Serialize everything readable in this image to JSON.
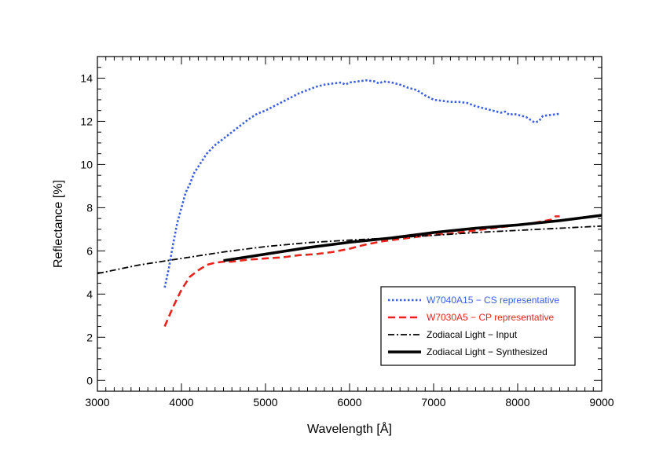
{
  "chart_data": {
    "type": "line",
    "title": "",
    "xlabel": "Wavelength [Å]",
    "ylabel": "Reflectance [%]",
    "xlim": [
      3000,
      9000
    ],
    "ylim": [
      -0.5,
      15
    ],
    "xticks": [
      3000,
      4000,
      5000,
      6000,
      7000,
      8000,
      9000
    ],
    "yticks": [
      0,
      2,
      4,
      6,
      8,
      10,
      12,
      14
    ],
    "grid": false,
    "legend_position": "bottom-right",
    "series": [
      {
        "name": "W7040A15 − CS representative",
        "color": "#3a5fe0",
        "style": "dotted",
        "x": [
          3800,
          3850,
          3900,
          3950,
          4000,
          4050,
          4100,
          4150,
          4200,
          4300,
          4400,
          4500,
          4600,
          4700,
          4800,
          4900,
          5000,
          5100,
          5200,
          5300,
          5400,
          5500,
          5600,
          5700,
          5800,
          5900,
          5950,
          6000,
          6100,
          6200,
          6300,
          6350,
          6400,
          6500,
          6600,
          6700,
          6800,
          6900,
          7000,
          7100,
          7200,
          7300,
          7400,
          7500,
          7600,
          7700,
          7800,
          7850,
          7900,
          7950,
          8000,
          8100,
          8200,
          8250,
          8300,
          8400,
          8500
        ],
        "y": [
          4.3,
          5.2,
          6.3,
          7.3,
          8.0,
          8.7,
          9.1,
          9.6,
          9.9,
          10.5,
          10.9,
          11.2,
          11.5,
          11.8,
          12.1,
          12.35,
          12.5,
          12.7,
          12.9,
          13.1,
          13.3,
          13.45,
          13.6,
          13.7,
          13.75,
          13.8,
          13.7,
          13.8,
          13.85,
          13.9,
          13.85,
          13.75,
          13.85,
          13.8,
          13.7,
          13.55,
          13.45,
          13.2,
          13.0,
          12.95,
          12.9,
          12.9,
          12.85,
          12.7,
          12.6,
          12.5,
          12.4,
          12.45,
          12.3,
          12.35,
          12.3,
          12.2,
          11.95,
          12.0,
          12.25,
          12.3,
          12.35
        ]
      },
      {
        "name": "W7030A5 − CP representative",
        "color": "#e8231b",
        "style": "dashed",
        "x": [
          3800,
          3900,
          4000,
          4100,
          4200,
          4300,
          4400,
          4500,
          4600,
          4700,
          4800,
          4900,
          5000,
          5200,
          5400,
          5600,
          5800,
          6000,
          6200,
          6400,
          6600,
          6800,
          7000,
          7200,
          7400,
          7600,
          7800,
          8000,
          8200,
          8400,
          8450,
          8500
        ],
        "y": [
          2.5,
          3.4,
          4.2,
          4.8,
          5.1,
          5.35,
          5.45,
          5.5,
          5.5,
          5.55,
          5.6,
          5.62,
          5.65,
          5.7,
          5.8,
          5.85,
          5.95,
          6.1,
          6.3,
          6.45,
          6.55,
          6.65,
          6.75,
          6.8,
          6.9,
          7.0,
          7.1,
          7.2,
          7.3,
          7.45,
          7.6,
          7.6
        ]
      },
      {
        "name": "Zodiacal Light − Input",
        "color": "#000000",
        "style": "dashdot",
        "x": [
          3000,
          3500,
          4000,
          4500,
          5000,
          5500,
          6000,
          6500,
          7000,
          7500,
          8000,
          8500,
          9000
        ],
        "y": [
          4.95,
          5.35,
          5.65,
          5.95,
          6.2,
          6.38,
          6.5,
          6.6,
          6.72,
          6.85,
          6.95,
          7.05,
          7.15
        ]
      },
      {
        "name": "Zodiacal Light − Synthesized",
        "color": "#000000",
        "style": "solid",
        "x": [
          4500,
          5000,
          5500,
          6000,
          6500,
          7000,
          7500,
          8000,
          8500,
          9000
        ],
        "y": [
          5.55,
          5.85,
          6.15,
          6.4,
          6.6,
          6.85,
          7.05,
          7.2,
          7.4,
          7.65
        ]
      }
    ]
  }
}
